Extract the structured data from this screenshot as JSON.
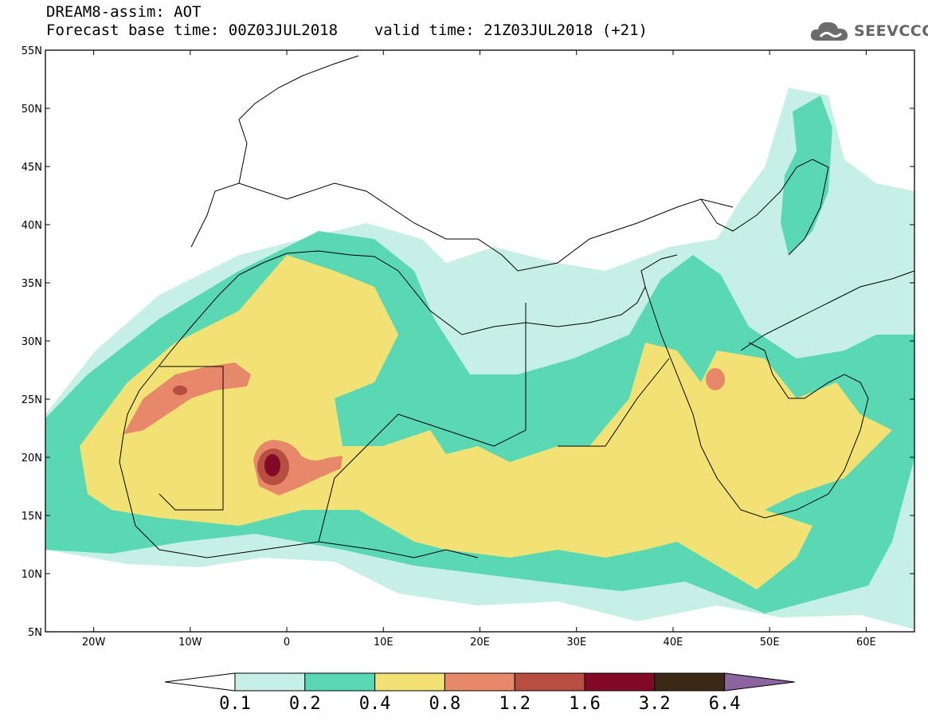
{
  "header": {
    "title": "DREAM8-assim: AOT",
    "base_time_label": "Forecast base time: 00Z03JUL2018",
    "valid_time_label": "valid time: 21Z03JUL2018 (+21)"
  },
  "logo": {
    "text": "SEEVCCC",
    "icon": "cloud-icon"
  },
  "map": {
    "lon_range": [
      -25,
      65
    ],
    "lat_range": [
      5,
      55
    ],
    "x_ticks": [
      {
        "value": -20,
        "label": "20W"
      },
      {
        "value": -10,
        "label": "10W"
      },
      {
        "value": 0,
        "label": "0"
      },
      {
        "value": 10,
        "label": "10E"
      },
      {
        "value": 20,
        "label": "20E"
      },
      {
        "value": 30,
        "label": "30E"
      },
      {
        "value": 40,
        "label": "40E"
      },
      {
        "value": 50,
        "label": "50E"
      },
      {
        "value": 60,
        "label": "60E"
      }
    ],
    "y_ticks": [
      {
        "value": 5,
        "label": "5N"
      },
      {
        "value": 10,
        "label": "10N"
      },
      {
        "value": 15,
        "label": "15N"
      },
      {
        "value": 20,
        "label": "20N"
      },
      {
        "value": 25,
        "label": "25N"
      },
      {
        "value": 30,
        "label": "30N"
      },
      {
        "value": 35,
        "label": "35N"
      },
      {
        "value": 40,
        "label": "40N"
      },
      {
        "value": 45,
        "label": "45N"
      },
      {
        "value": 50,
        "label": "50N"
      },
      {
        "value": 55,
        "label": "55N"
      }
    ]
  },
  "colorbar": {
    "colors": [
      "#ffffff",
      "#c6f0e6",
      "#5ad8b4",
      "#f2e276",
      "#e7886a",
      "#b84d42",
      "#820a28",
      "#3c2816",
      "#8c64a0"
    ],
    "levels": [
      "0.1",
      "0.2",
      "0.4",
      "0.8",
      "1.2",
      "1.6",
      "3.2",
      "6.4"
    ]
  }
}
